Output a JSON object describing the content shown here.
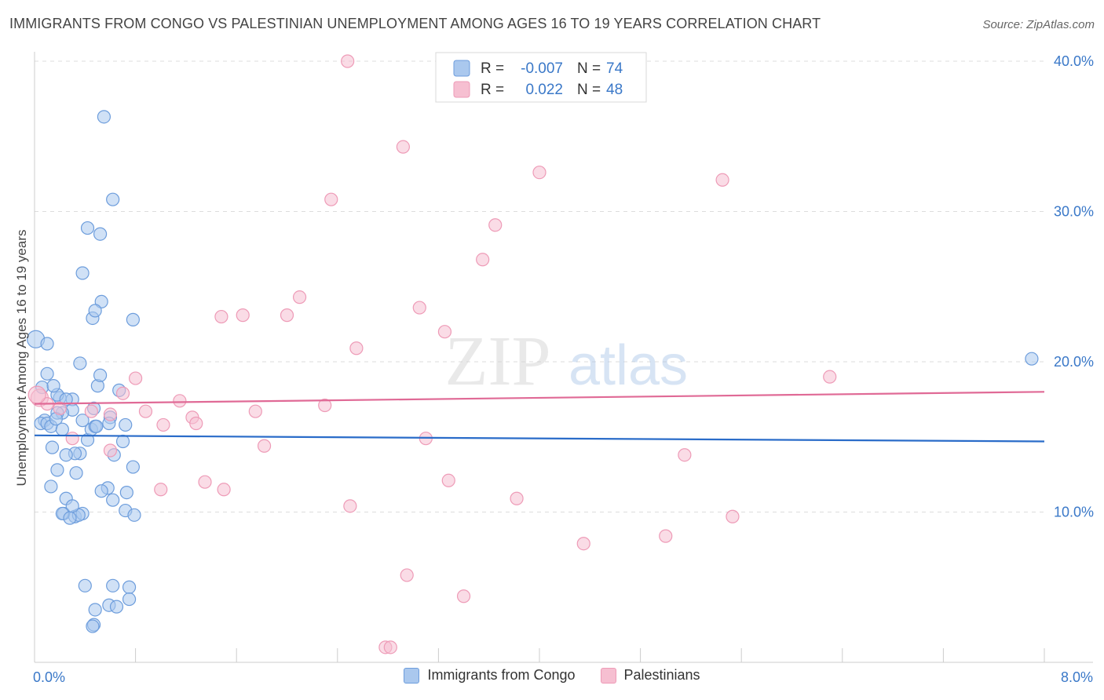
{
  "title": "IMMIGRANTS FROM CONGO VS PALESTINIAN UNEMPLOYMENT AMONG AGES 16 TO 19 YEARS CORRELATION CHART",
  "source": "Source: ZipAtlas.com",
  "colors": {
    "congo_fill": "#aac8ee",
    "congo_stroke": "#6d9ddc",
    "congo_line": "#2a6cc9",
    "pal_fill": "#f6bfd1",
    "pal_stroke": "#ee9bb7",
    "pal_line": "#e06a96",
    "axis_label": "#3a78c8",
    "grid": "#dddddd"
  },
  "stats_box": {
    "rows": [
      {
        "r_label": "R =",
        "r_value": "-0.007",
        "n_label": "N =",
        "n_value": "74",
        "series": "congo"
      },
      {
        "r_label": "R =",
        "r_value": "0.022",
        "n_label": "N =",
        "n_value": "48",
        "series": "pal"
      }
    ]
  },
  "legend": {
    "congo": "Immigrants from Congo",
    "pal": "Palestinians"
  },
  "watermark": {
    "zip": "ZIP",
    "atlas": "atlas"
  },
  "chart_data": {
    "type": "scatter",
    "ylabel": "Unemployment Among Ages 16 to 19 years",
    "xlim": [
      0,
      8
    ],
    "ylim": [
      0,
      40
    ],
    "x_tick_labels": [
      {
        "value": 0,
        "label": "0.0%"
      },
      {
        "value": 8,
        "label": "8.0%"
      }
    ],
    "y_tick_labels": [
      {
        "value": 10,
        "label": "10.0%"
      },
      {
        "value": 20,
        "label": "20.0%"
      },
      {
        "value": 30,
        "label": "30.0%"
      },
      {
        "value": 40,
        "label": "40.0%"
      }
    ],
    "grid": true,
    "series": [
      {
        "key": "congo",
        "name": "Immigrants from Congo",
        "trend": {
          "y_at_x0": 15.1,
          "y_at_x8": 14.7
        },
        "points": [
          [
            0.01,
            21.5
          ],
          [
            0.06,
            18.3
          ],
          [
            0.08,
            16.1
          ],
          [
            0.05,
            15.9
          ],
          [
            0.1,
            15.9
          ],
          [
            0.13,
            15.7
          ],
          [
            0.14,
            14.3
          ],
          [
            0.18,
            12.8
          ],
          [
            0.13,
            11.7
          ],
          [
            0.25,
            10.9
          ],
          [
            0.23,
            9.9
          ],
          [
            0.22,
            9.9
          ],
          [
            0.32,
            9.7
          ],
          [
            0.38,
            9.9
          ],
          [
            0.35,
            9.8
          ],
          [
            0.28,
            9.6
          ],
          [
            0.3,
            10.4
          ],
          [
            0.38,
            16.1
          ],
          [
            0.33,
            12.6
          ],
          [
            0.36,
            13.9
          ],
          [
            0.32,
            13.9
          ],
          [
            0.25,
            13.8
          ],
          [
            0.3,
            17.5
          ],
          [
            0.2,
            17.6
          ],
          [
            0.18,
            17.8
          ],
          [
            0.15,
            18.4
          ],
          [
            0.1,
            19.2
          ],
          [
            0.1,
            21.2
          ],
          [
            0.36,
            19.9
          ],
          [
            0.3,
            16.8
          ],
          [
            0.22,
            16.6
          ],
          [
            0.18,
            16.6
          ],
          [
            0.17,
            16.2
          ],
          [
            0.22,
            15.5
          ],
          [
            0.25,
            17.5
          ],
          [
            0.47,
            16.9
          ],
          [
            0.42,
            14.8
          ],
          [
            0.45,
            15.5
          ],
          [
            0.48,
            15.7
          ],
          [
            0.49,
            15.7
          ],
          [
            0.5,
            18.4
          ],
          [
            0.52,
            19.1
          ],
          [
            0.53,
            24.0
          ],
          [
            0.52,
            28.5
          ],
          [
            0.55,
            36.3
          ],
          [
            0.46,
            22.9
          ],
          [
            0.48,
            23.4
          ],
          [
            0.42,
            28.9
          ],
          [
            0.38,
            25.9
          ],
          [
            0.6,
            16.3
          ],
          [
            0.59,
            15.9
          ],
          [
            0.63,
            13.8
          ],
          [
            0.58,
            11.6
          ],
          [
            0.53,
            11.4
          ],
          [
            0.62,
            10.8
          ],
          [
            0.72,
            10.1
          ],
          [
            0.73,
            11.3
          ],
          [
            0.79,
            9.8
          ],
          [
            0.78,
            13.0
          ],
          [
            0.72,
            15.8
          ],
          [
            0.7,
            14.7
          ],
          [
            0.67,
            18.1
          ],
          [
            0.78,
            22.8
          ],
          [
            0.62,
            30.8
          ],
          [
            0.59,
            3.8
          ],
          [
            0.65,
            3.7
          ],
          [
            0.62,
            5.1
          ],
          [
            0.75,
            5.0
          ],
          [
            0.75,
            4.2
          ],
          [
            0.48,
            3.5
          ],
          [
            0.47,
            2.5
          ],
          [
            0.46,
            2.4
          ],
          [
            0.4,
            5.1
          ],
          [
            7.9,
            20.2
          ]
        ]
      },
      {
        "key": "pal",
        "name": "Palestinians",
        "trend": {
          "y_at_x0": 17.2,
          "y_at_x8": 18.0
        },
        "points": [
          [
            0.04,
            17.6
          ],
          [
            0.1,
            17.2
          ],
          [
            0.2,
            16.9
          ],
          [
            0.3,
            14.9
          ],
          [
            0.45,
            16.7
          ],
          [
            0.6,
            14.1
          ],
          [
            0.7,
            17.9
          ],
          [
            0.8,
            18.9
          ],
          [
            0.88,
            16.7
          ],
          [
            1.02,
            15.8
          ],
          [
            1.15,
            17.4
          ],
          [
            1.25,
            16.3
          ],
          [
            1.28,
            15.9
          ],
          [
            1.35,
            12.0
          ],
          [
            1.5,
            11.5
          ],
          [
            1.48,
            23.0
          ],
          [
            1.65,
            23.1
          ],
          [
            1.75,
            16.7
          ],
          [
            1.82,
            14.4
          ],
          [
            2.0,
            23.1
          ],
          [
            2.1,
            24.3
          ],
          [
            2.3,
            17.1
          ],
          [
            2.35,
            30.8
          ],
          [
            2.48,
            40.0
          ],
          [
            2.5,
            10.4
          ],
          [
            2.55,
            20.9
          ],
          [
            2.78,
            1.0
          ],
          [
            2.82,
            1.0
          ],
          [
            2.92,
            34.3
          ],
          [
            2.95,
            5.8
          ],
          [
            3.05,
            23.6
          ],
          [
            3.1,
            14.9
          ],
          [
            3.25,
            22.0
          ],
          [
            3.28,
            12.1
          ],
          [
            3.4,
            4.4
          ],
          [
            3.55,
            26.8
          ],
          [
            3.65,
            29.1
          ],
          [
            3.82,
            10.9
          ],
          [
            4.0,
            32.6
          ],
          [
            4.35,
            7.9
          ],
          [
            5.0,
            8.4
          ],
          [
            5.15,
            13.8
          ],
          [
            5.45,
            32.1
          ],
          [
            5.53,
            9.7
          ],
          [
            6.3,
            19.0
          ],
          [
            0.6,
            16.5
          ],
          [
            1.0,
            11.5
          ],
          [
            0.02,
            17.8
          ]
        ]
      }
    ]
  }
}
